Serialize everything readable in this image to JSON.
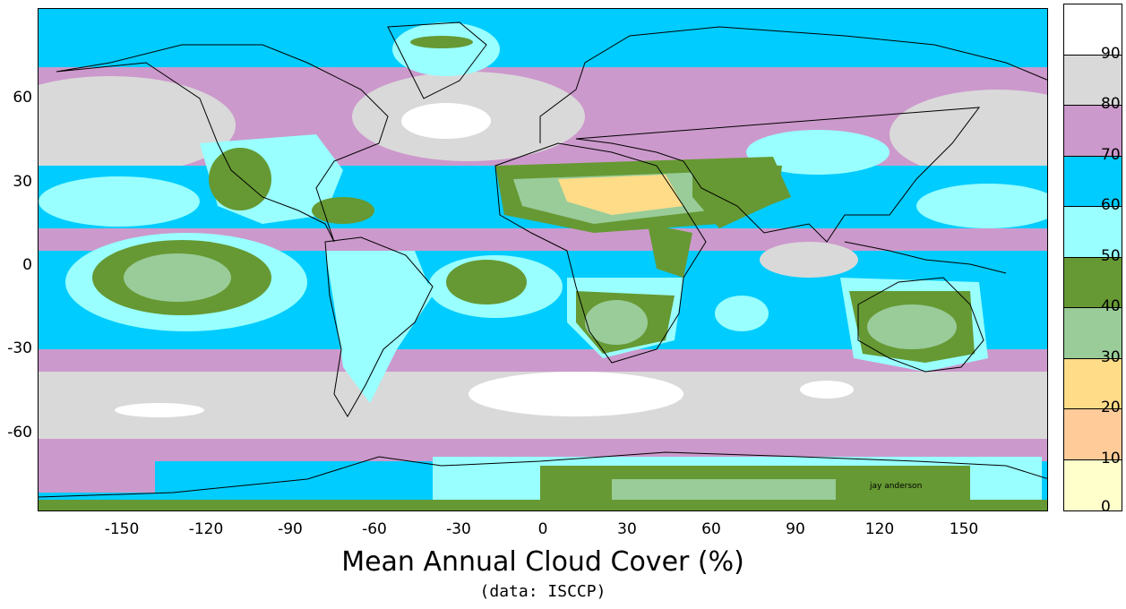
{
  "title": "Mean Annual Cloud Cover (%)",
  "subtitle": "(data: ISCCP)",
  "credit": "jay anderson",
  "x_ticks": [
    "-150",
    "-120",
    "-90",
    "-60",
    "-30",
    "0",
    "30",
    "60",
    "90",
    "120",
    "150"
  ],
  "x_tick_values": [
    -150,
    -120,
    -90,
    -60,
    -30,
    0,
    30,
    60,
    90,
    120,
    150
  ],
  "y_ticks": [
    "60",
    "30",
    "0",
    "-30",
    "-60"
  ],
  "y_tick_values": [
    60,
    30,
    0,
    -30,
    -60
  ],
  "legend": {
    "labels": [
      "90",
      "80",
      "70",
      "60",
      "50",
      "40",
      "30",
      "20",
      "10",
      "0"
    ],
    "bins": [
      {
        "range": [
          90,
          100
        ],
        "color": "#ffffff"
      },
      {
        "range": [
          80,
          90
        ],
        "color": "#d9d9d9"
      },
      {
        "range": [
          70,
          80
        ],
        "color": "#cc99cc"
      },
      {
        "range": [
          60,
          70
        ],
        "color": "#00ccff"
      },
      {
        "range": [
          50,
          60
        ],
        "color": "#99ffff"
      },
      {
        "range": [
          40,
          50
        ],
        "color": "#669933"
      },
      {
        "range": [
          30,
          40
        ],
        "color": "#99cc99"
      },
      {
        "range": [
          20,
          30
        ],
        "color": "#ffdd88"
      },
      {
        "range": [
          10,
          20
        ],
        "color": "#ffcc99"
      },
      {
        "range": [
          0,
          10
        ],
        "color": "#ffffcc"
      }
    ]
  }
}
